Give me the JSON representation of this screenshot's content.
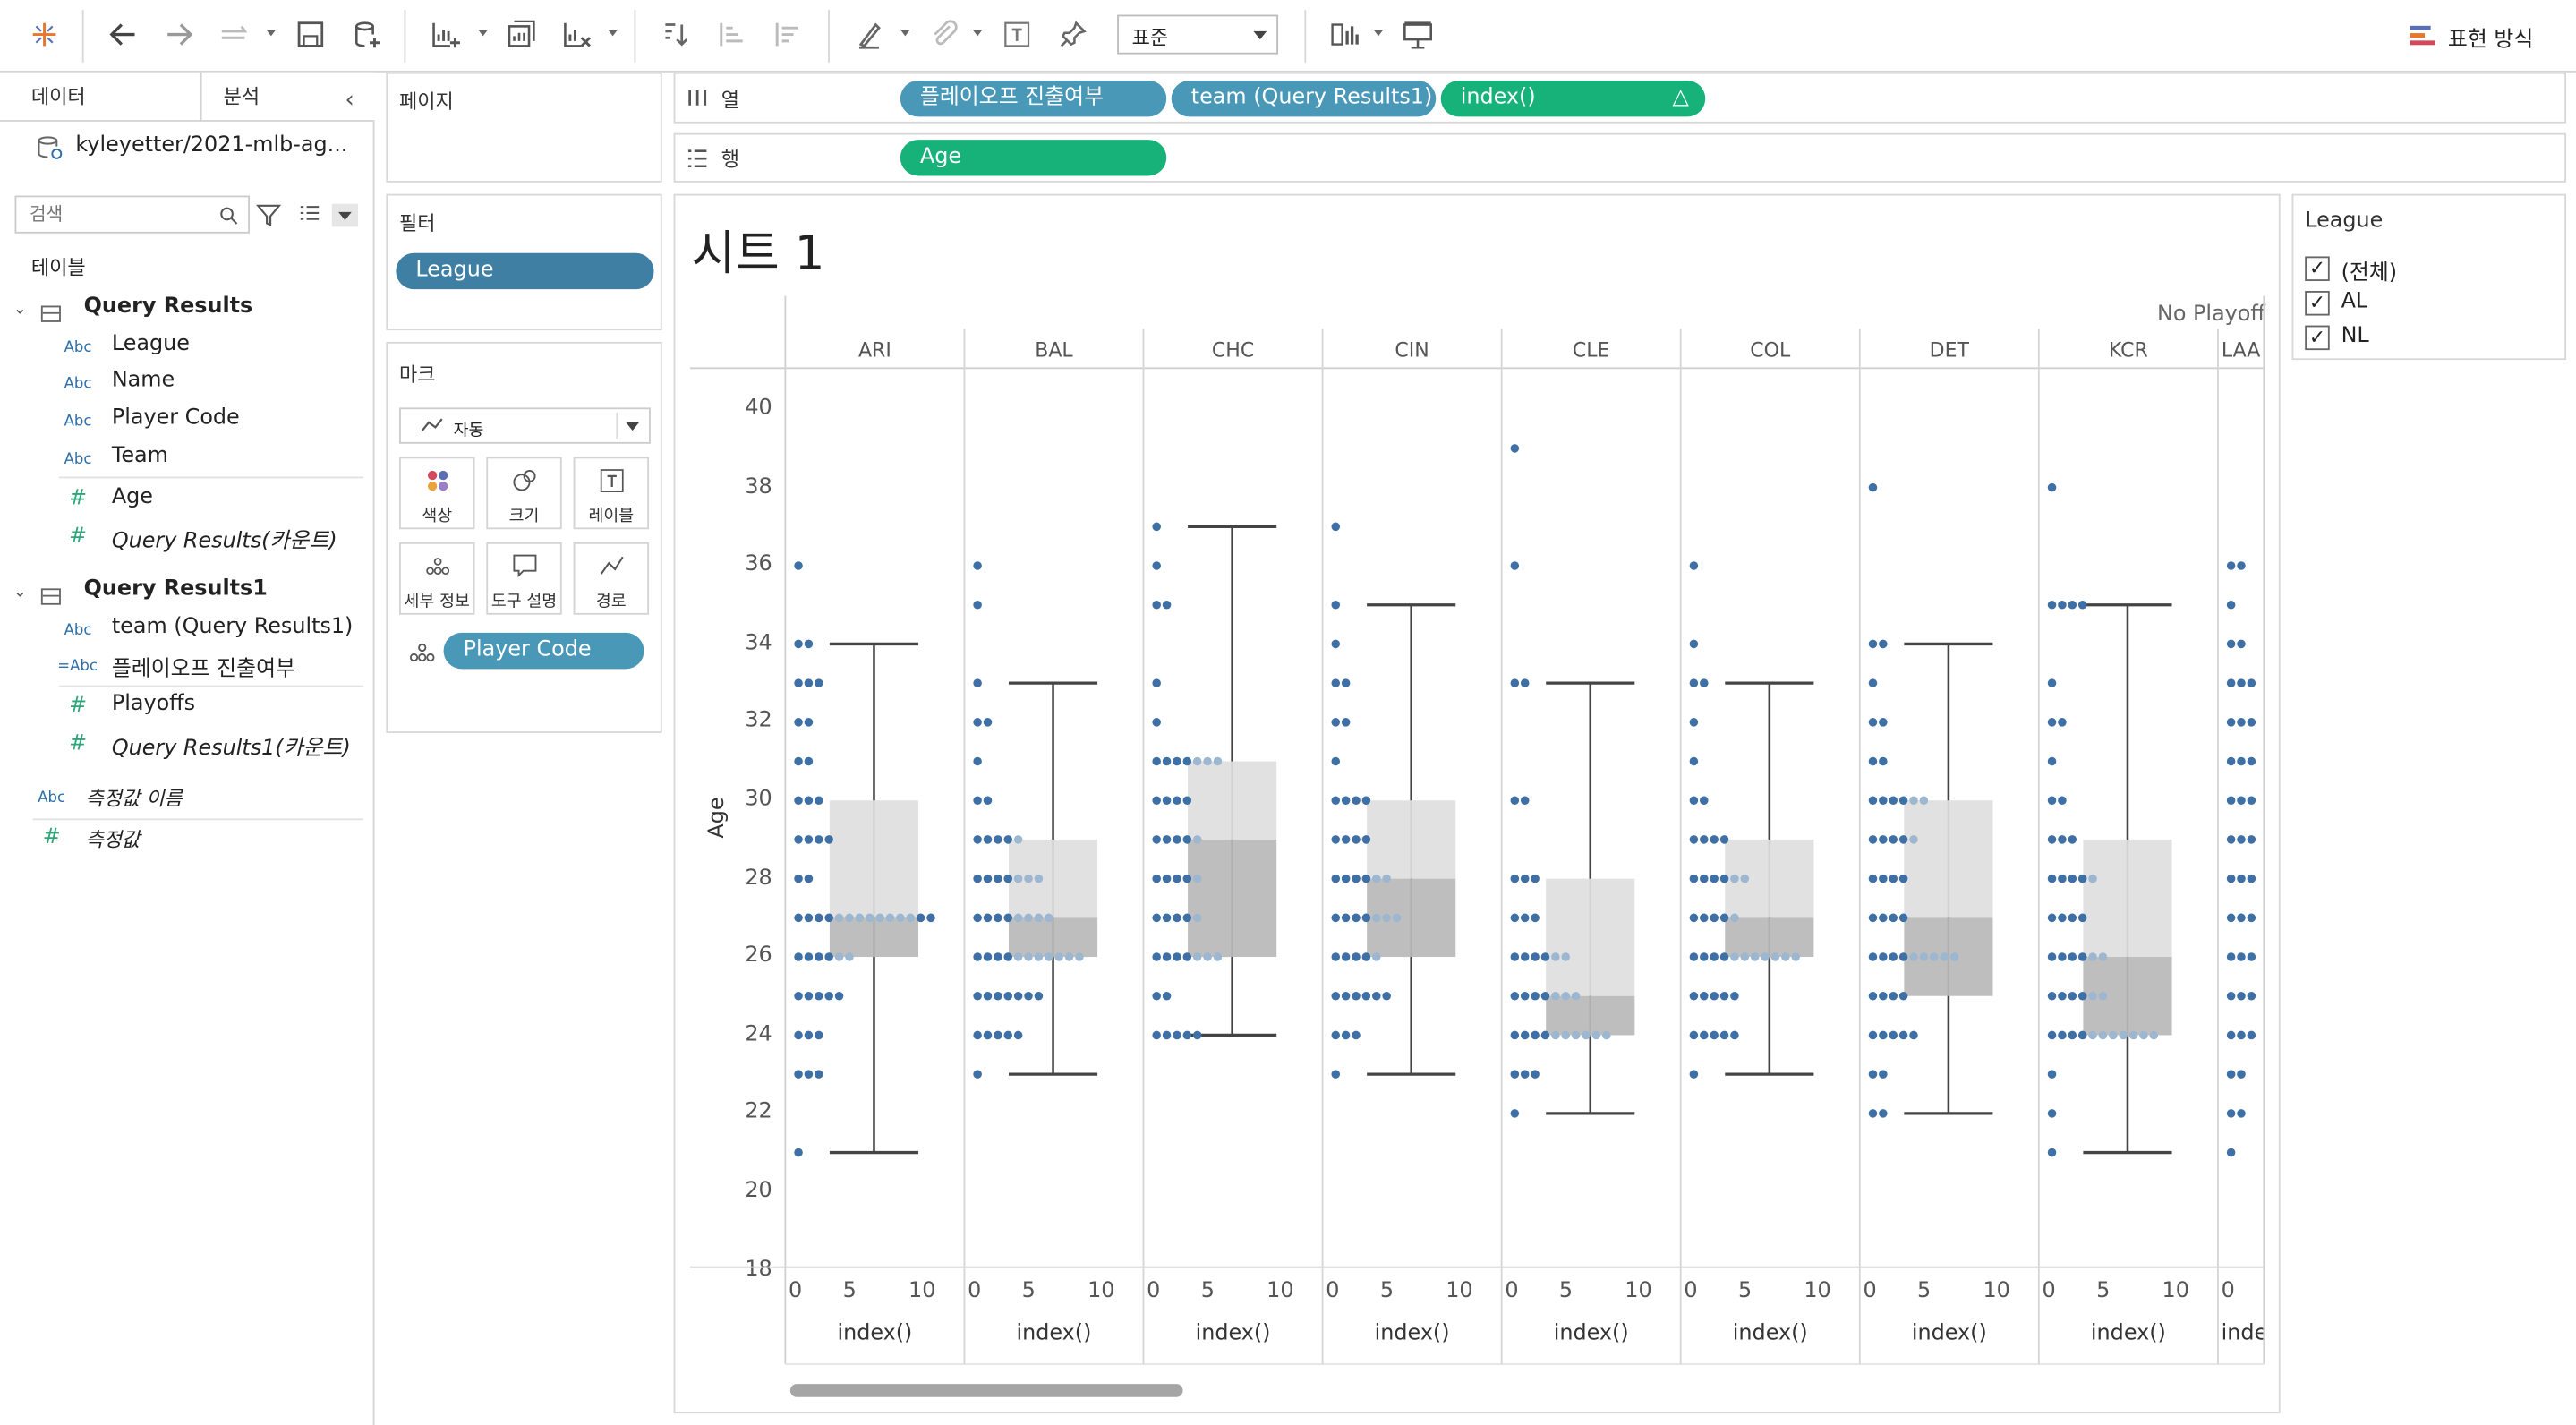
{
  "toolbar": {
    "fit_select": "표준",
    "show_me": "표현 방식"
  },
  "left_pane": {
    "tab_data": "데이터",
    "tab_analysis": "분석",
    "datasource": "kyleyetter/2021-mlb-ag...",
    "search_placeholder": "검색",
    "tables_label": "테이블",
    "groups": [
      {
        "name": "Query Results",
        "fields": [
          {
            "type": "Abc",
            "name": "League"
          },
          {
            "type": "Abc",
            "name": "Name"
          },
          {
            "type": "Abc",
            "name": "Player Code"
          },
          {
            "type": "Abc",
            "name": "Team"
          },
          {
            "type": "#",
            "name": "Age"
          },
          {
            "type": "#",
            "name": "Query Results(카운트)"
          }
        ]
      },
      {
        "name": "Query Results1",
        "fields": [
          {
            "type": "Abc",
            "name": "team (Query Results1)"
          },
          {
            "type": "=Abc",
            "name": "플레이오프 진출여부"
          },
          {
            "type": "#",
            "name": "Playoffs"
          },
          {
            "type": "#",
            "name": "Query Results1(카운트)"
          }
        ]
      }
    ],
    "measure_names": "측정값 이름",
    "measure_values": "측정값"
  },
  "pages_label": "페이지",
  "filters_label": "필터",
  "filter_pill": "League",
  "marks": {
    "label": "마크",
    "type": "자동",
    "buttons": [
      "색상",
      "크기",
      "레이블",
      "세부 정보",
      "도구 설명",
      "경로"
    ],
    "detail_pill": "Player Code"
  },
  "shelves": {
    "columns_label": "열",
    "rows_label": "행",
    "columns": [
      "플레이오프 진출여부",
      "team (Query Results1)",
      "index()"
    ],
    "rows": [
      "Age"
    ]
  },
  "sheet_title": "시트 1",
  "legend": {
    "title": "League",
    "items": [
      "(전체)",
      "AL",
      "NL"
    ]
  },
  "chart_data": {
    "type": "scatter",
    "title": "시트 1",
    "header": "No Playoff",
    "ylabel": "Age",
    "xlabel": "index()",
    "ylim": [
      18,
      40
    ],
    "yticks": [
      40,
      38,
      36,
      34,
      32,
      30,
      28,
      26,
      24,
      22,
      20,
      18
    ],
    "xticks": [
      "0",
      "5",
      "10"
    ],
    "teams": [
      {
        "team": "ARI",
        "whisker_low": 21,
        "q1": 26,
        "median": 27,
        "q3": 30,
        "whisker_high": 34,
        "dots": {
          "36": 1,
          "34": 2,
          "33": 3,
          "32": 2,
          "31": 2,
          "30": 3,
          "29": 4,
          "28": 2,
          "27": 14,
          "26": 6,
          "25": 5,
          "24": 3,
          "23": 3,
          "21": 1
        }
      },
      {
        "team": "BAL",
        "whisker_low": 23,
        "q1": 26,
        "median": 27,
        "q3": 29,
        "whisker_high": 33,
        "dots": {
          "36": 1,
          "35": 1,
          "33": 1,
          "32": 2,
          "31": 1,
          "30": 2,
          "29": 5,
          "28": 7,
          "27": 8,
          "26": 11,
          "25": 7,
          "24": 5,
          "23": 1
        }
      },
      {
        "team": "CHC",
        "whisker_low": 24,
        "q1": 26,
        "median": 29,
        "q3": 31,
        "whisker_high": 37,
        "dots": {
          "37": 1,
          "36": 1,
          "35": 2,
          "33": 1,
          "32": 1,
          "31": 7,
          "30": 4,
          "29": 5,
          "28": 5,
          "27": 5,
          "26": 7,
          "25": 2,
          "24": 5
        }
      },
      {
        "team": "CIN",
        "whisker_low": 23,
        "q1": 26,
        "median": 28,
        "q3": 30,
        "whisker_high": 35,
        "dots": {
          "37": 1,
          "35": 1,
          "34": 1,
          "33": 2,
          "32": 2,
          "31": 1,
          "30": 4,
          "29": 4,
          "28": 6,
          "27": 7,
          "26": 5,
          "25": 6,
          "24": 3,
          "23": 1
        }
      },
      {
        "team": "CLE",
        "whisker_low": 22,
        "q1": 24,
        "median": 25,
        "q3": 28,
        "whisker_high": 33,
        "dots": {
          "39": 1,
          "36": 1,
          "33": 2,
          "30": 2,
          "28": 3,
          "27": 3,
          "26": 6,
          "25": 7,
          "24": 10,
          "23": 3,
          "22": 1
        }
      },
      {
        "team": "COL",
        "whisker_low": 23,
        "q1": 26,
        "median": 27,
        "q3": 29,
        "whisker_high": 33,
        "dots": {
          "36": 1,
          "34": 1,
          "33": 2,
          "32": 1,
          "31": 1,
          "30": 2,
          "29": 4,
          "28": 6,
          "27": 5,
          "26": 11,
          "25": 5,
          "24": 5,
          "23": 1
        }
      },
      {
        "team": "DET",
        "whisker_low": 22,
        "q1": 25,
        "median": 27,
        "q3": 30,
        "whisker_high": 34,
        "dots": {
          "38": 1,
          "34": 2,
          "33": 1,
          "32": 2,
          "31": 2,
          "30": 6,
          "29": 5,
          "28": 4,
          "27": 4,
          "26": 9,
          "25": 4,
          "24": 5,
          "23": 2,
          "22": 2
        }
      },
      {
        "team": "KCR",
        "whisker_low": 21,
        "q1": 24,
        "median": 26,
        "q3": 29,
        "whisker_high": 35,
        "dots": {
          "38": 1,
          "35": 4,
          "33": 1,
          "32": 2,
          "31": 1,
          "30": 2,
          "29": 3,
          "28": 5,
          "27": 4,
          "26": 6,
          "25": 6,
          "24": 11,
          "23": 1,
          "22": 1,
          "21": 1
        }
      },
      {
        "team": "LAA",
        "dots": {
          "36": 2,
          "35": 1,
          "34": 2,
          "33": 3,
          "32": 3,
          "31": 3,
          "30": 3,
          "29": 3,
          "28": 3,
          "27": 3,
          "26": 3,
          "25": 3,
          "24": 3,
          "23": 2,
          "22": 2,
          "21": 1
        }
      }
    ]
  }
}
